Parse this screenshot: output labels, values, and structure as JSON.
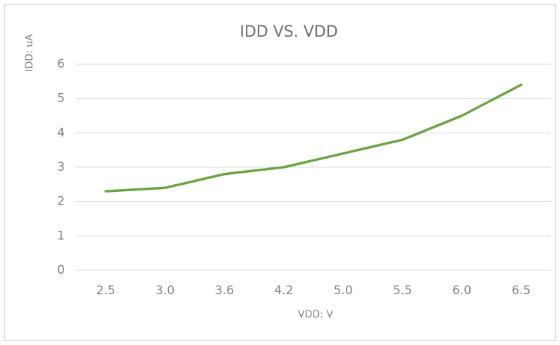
{
  "chart_data": {
    "type": "line",
    "title": "IDD VS. VDD",
    "x_label": "VDD: V",
    "y_label": "IDD: uA",
    "categories": [
      "2.5",
      "3.0",
      "3.6",
      "4.2",
      "5.0",
      "5.5",
      "6.0",
      "6.5"
    ],
    "series": [
      {
        "name": "IDD",
        "color": "#6aa443",
        "values": [
          2.3,
          2.4,
          2.8,
          3.0,
          3.4,
          3.8,
          4.5,
          5.4
        ]
      }
    ],
    "ylim": [
      0,
      6
    ],
    "yticks": [
      0,
      1,
      2,
      3,
      4,
      5,
      6
    ],
    "grid": true
  }
}
